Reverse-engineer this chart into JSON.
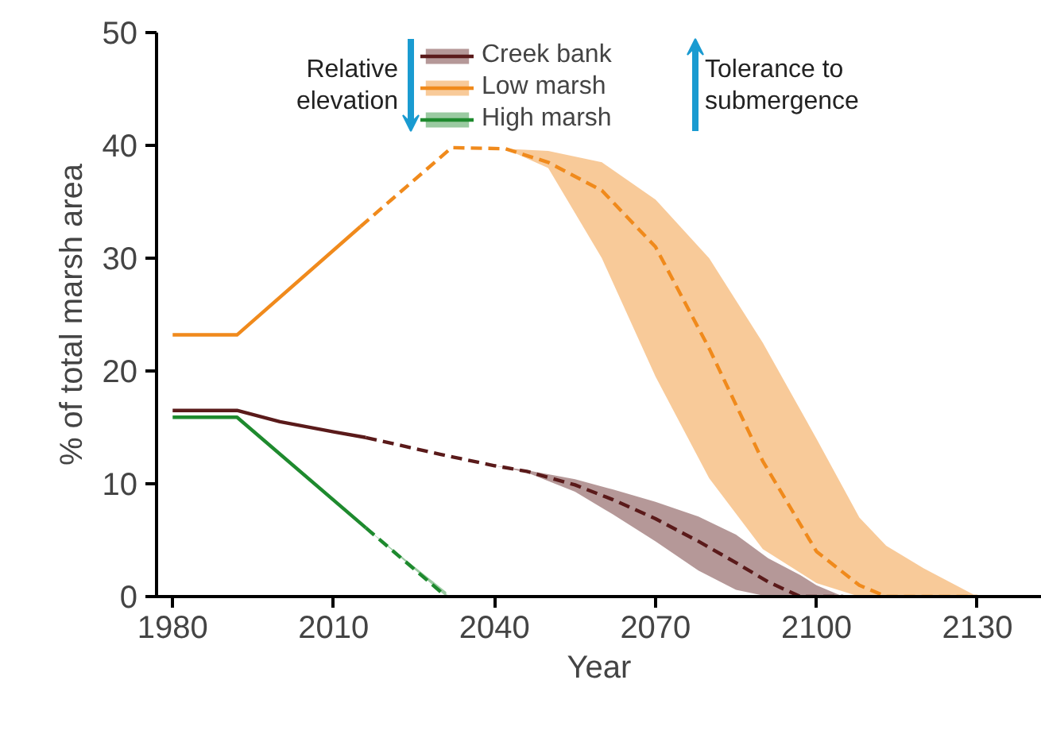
{
  "chart_data": {
    "type": "line",
    "xlabel": "Year",
    "ylabel": "% of total marsh area",
    "xlim": [
      1977,
      2142
    ],
    "xticks": [
      1980,
      2010,
      2040,
      2070,
      2100,
      2130
    ],
    "ylim": [
      0,
      50
    ],
    "yticks": [
      0,
      10,
      20,
      30,
      40,
      50
    ],
    "grid": false,
    "legend": "top",
    "line_style": "solid",
    "annotations": [
      "Relative elevation",
      "Tolerance to submergence"
    ],
    "series": [
      {
        "name": "Creek bank",
        "color": "#5a1a1a",
        "x": [
          1980,
          1992,
          2000,
          2010,
          2016
        ],
        "values": [
          16.5,
          16.5,
          15.5,
          14.6,
          14.1
        ]
      },
      {
        "name": "Low marsh",
        "color": "#f08a1c",
        "x": [
          1980,
          1992,
          2015
        ],
        "values": [
          23.2,
          23.2,
          32.8
        ]
      },
      {
        "name": "High marsh",
        "color": "#1e8a2e",
        "x": [
          1980,
          1992,
          2016
        ],
        "values": [
          15.9,
          15.9,
          6.1
        ]
      },
      {
        "color": "#5a1a1a",
        "line_style": "dashed",
        "x": [
          2016,
          2030,
          2040,
          2046,
          2055,
          2062,
          2070,
          2078,
          2085,
          2091,
          2097,
          2100,
          2105
        ],
        "values": [
          14.1,
          12.6,
          11.6,
          11.1,
          9.9,
          8.6,
          6.9,
          4.9,
          3.0,
          1.3,
          0,
          0,
          0
        ],
        "lower": [
          14.1,
          12.6,
          11.6,
          11.0,
          9.3,
          7.3,
          4.9,
          2.3,
          0.6,
          0,
          0,
          0,
          0
        ],
        "upper": [
          14.1,
          12.6,
          11.6,
          11.2,
          10.4,
          9.5,
          8.4,
          7.1,
          5.5,
          3.4,
          1.9,
          1.0,
          0
        ]
      },
      {
        "color": "#f08a1c",
        "line_style": "dashed",
        "x": [
          2015,
          2032,
          2042,
          2050,
          2060,
          2070,
          2080,
          2090,
          2100,
          2108,
          2113,
          2120,
          2130
        ],
        "values": [
          32.8,
          39.8,
          39.7,
          38.5,
          36,
          31,
          22,
          12,
          4,
          1,
          0,
          0,
          0
        ],
        "lower": [
          32.8,
          39.8,
          39.7,
          38,
          30,
          19.5,
          10.5,
          4.2,
          1.2,
          0,
          0,
          0,
          0
        ],
        "upper": [
          32.8,
          39.8,
          39.7,
          39.5,
          38.5,
          35.2,
          30,
          22.5,
          14,
          7,
          4.5,
          2.5,
          0
        ]
      },
      {
        "color": "#1e8a2e",
        "line_style": "dashed",
        "x": [
          2016,
          2031
        ],
        "values": [
          6.1,
          0
        ],
        "lower": [
          6.1,
          0
        ],
        "upper": [
          6.1,
          0.4
        ]
      }
    ]
  }
}
